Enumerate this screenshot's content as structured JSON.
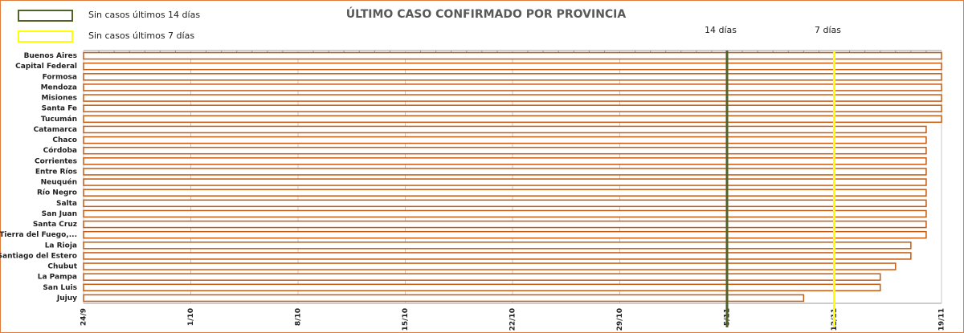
{
  "chart_data": {
    "type": "bar",
    "orientation": "horizontal",
    "title": "ÚLTIMO CASO CONFIRMADO POR PROVINCIA",
    "categories": [
      "Buenos Aires",
      "Capital Federal",
      "Formosa",
      "Mendoza",
      "Misiones",
      "Santa Fe",
      "Tucumán",
      "Catamarca",
      "Chaco",
      "Córdoba",
      "Corrientes",
      "Entre Ríos",
      "Neuquén",
      "Río Negro",
      "Salta",
      "San Juan",
      "Santa Cruz",
      "Tierra del Fuego,...",
      "La Rioja",
      "Santiago del Estero",
      "Chubut",
      "La Pampa",
      "San Luis",
      "Jujuy"
    ],
    "values": [
      "19/11",
      "19/11",
      "19/11",
      "19/11",
      "19/11",
      "19/11",
      "19/11",
      "18/11",
      "18/11",
      "18/11",
      "18/11",
      "18/11",
      "18/11",
      "18/11",
      "18/11",
      "18/11",
      "18/11",
      "18/11",
      "17/11",
      "17/11",
      "16/11",
      "15/11",
      "15/11",
      "10/11"
    ],
    "color": "#c55a11",
    "xlim": [
      "24/9",
      "19/11"
    ],
    "xticks": [
      "24/9",
      "1/10",
      "8/10",
      "15/10",
      "22/10",
      "29/10",
      "5/11",
      "12/11",
      "19/11"
    ],
    "grid": true,
    "reference_lines": [
      {
        "label": "14 días",
        "x": "5/11",
        "color": "#4f6228"
      },
      {
        "label": "7 días",
        "x": "12/11",
        "color": "#ffff00"
      }
    ],
    "legend": [
      {
        "name": "Sin casos últimos 14 días",
        "color": "#4f6228"
      },
      {
        "name": "Sin casos últimos 7 días",
        "color": "#ffff00"
      }
    ]
  }
}
